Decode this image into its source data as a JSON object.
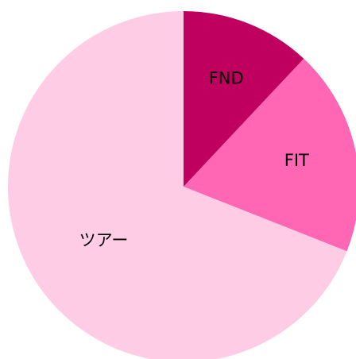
{
  "chart_data": {
    "type": "pie",
    "categories": [
      "FND",
      "FIT",
      "ツアー"
    ],
    "values": [
      12,
      19,
      69
    ],
    "colors": [
      "#c0005e",
      "#ff66b3",
      "#ffcce6"
    ]
  }
}
